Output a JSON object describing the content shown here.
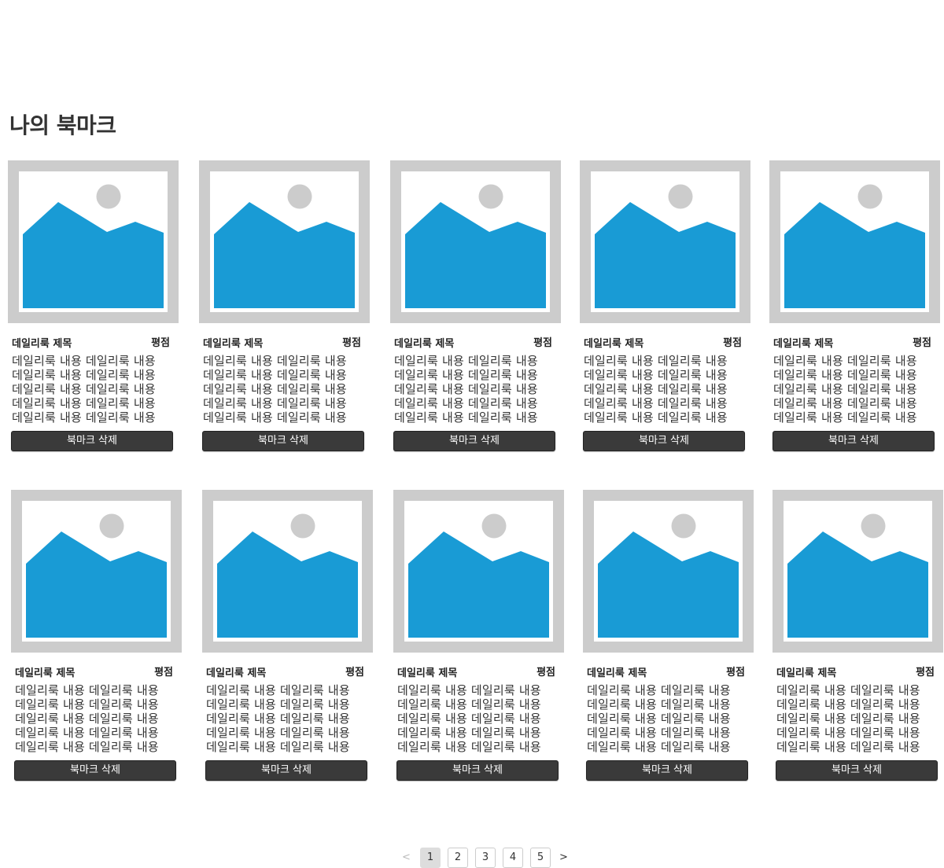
{
  "page": {
    "title": "나의 북마크"
  },
  "card_template": {
    "image_icon": "image-placeholder-icon"
  },
  "cards": [
    {
      "title": "데일리룩 제목",
      "rating": "평점",
      "body_lines": [
        "데일리룩 내용 데일리룩 내용",
        "데일리룩 내용 데일리룩 내용",
        "데일리룩 내용 데일리룩 내용",
        "데일리룩 내용 데일리룩 내용",
        "데일리룩 내용 데일리룩 내용"
      ],
      "button": "북마크 삭제"
    },
    {
      "title": "데일리룩 제목",
      "rating": "평점",
      "body_lines": [
        "데일리룩 내용 데일리룩 내용",
        "데일리룩 내용 데일리룩 내용",
        "데일리룩 내용 데일리룩 내용",
        "데일리룩 내용 데일리룩 내용",
        "데일리룩 내용 데일리룩 내용"
      ],
      "button": "북마크 삭제"
    },
    {
      "title": "데일리룩 제목",
      "rating": "평점",
      "body_lines": [
        "데일리룩 내용 데일리룩 내용",
        "데일리룩 내용 데일리룩 내용",
        "데일리룩 내용 데일리룩 내용",
        "데일리룩 내용 데일리룩 내용",
        "데일리룩 내용 데일리룩 내용"
      ],
      "button": "북마크 삭제"
    },
    {
      "title": "데일리룩 제목",
      "rating": "평점",
      "body_lines": [
        "데일리룩 내용 데일리룩 내용",
        "데일리룩 내용 데일리룩 내용",
        "데일리룩 내용 데일리룩 내용",
        "데일리룩 내용 데일리룩 내용",
        "데일리룩 내용 데일리룩 내용"
      ],
      "button": "북마크 삭제"
    },
    {
      "title": "데일리룩 제목",
      "rating": "평점",
      "body_lines": [
        "데일리룩 내용 데일리룩 내용",
        "데일리룩 내용 데일리룩 내용",
        "데일리룩 내용 데일리룩 내용",
        "데일리룩 내용 데일리룩 내용",
        "데일리룩 내용 데일리룩 내용"
      ],
      "button": "북마크 삭제"
    },
    {
      "title": "데일리룩 제목",
      "rating": "평점",
      "body_lines": [
        "데일리룩 내용 데일리룩 내용",
        "데일리룩 내용 데일리룩 내용",
        "데일리룩 내용 데일리룩 내용",
        "데일리룩 내용 데일리룩 내용",
        "데일리룩 내용 데일리룩 내용"
      ],
      "button": "북마크 삭제"
    },
    {
      "title": "데일리룩 제목",
      "rating": "평점",
      "body_lines": [
        "데일리룩 내용 데일리룩 내용",
        "데일리룩 내용 데일리룩 내용",
        "데일리룩 내용 데일리룩 내용",
        "데일리룩 내용 데일리룩 내용",
        "데일리룩 내용 데일리룩 내용"
      ],
      "button": "북마크 삭제"
    },
    {
      "title": "데일리룩 제목",
      "rating": "평점",
      "body_lines": [
        "데일리룩 내용 데일리룩 내용",
        "데일리룩 내용 데일리룩 내용",
        "데일리룩 내용 데일리룩 내용",
        "데일리룩 내용 데일리룩 내용",
        "데일리룩 내용 데일리룩 내용"
      ],
      "button": "북마크 삭제"
    },
    {
      "title": "데일리룩 제목",
      "rating": "평점",
      "body_lines": [
        "데일리룩 내용 데일리룩 내용",
        "데일리룩 내용 데일리룩 내용",
        "데일리룩 내용 데일리룩 내용",
        "데일리룩 내용 데일리룩 내용",
        "데일리룩 내용 데일리룩 내용"
      ],
      "button": "북마크 삭제"
    },
    {
      "title": "데일리룩 제목",
      "rating": "평점",
      "body_lines": [
        "데일리룩 내용 데일리룩 내용",
        "데일리룩 내용 데일리룩 내용",
        "데일리룩 내용 데일리룩 내용",
        "데일리룩 내용 데일리룩 내용",
        "데일리룩 내용 데일리룩 내용"
      ],
      "button": "북마크 삭제"
    }
  ],
  "pagination": {
    "prev": "<",
    "next": ">",
    "pages": [
      "1",
      "2",
      "3",
      "4",
      "5"
    ],
    "current": "1"
  },
  "colors": {
    "image_frame": "#cccccc",
    "image_fill": "#199bd5",
    "button_bg": "#3a3a3a",
    "active_page_bg": "#dddddd"
  }
}
